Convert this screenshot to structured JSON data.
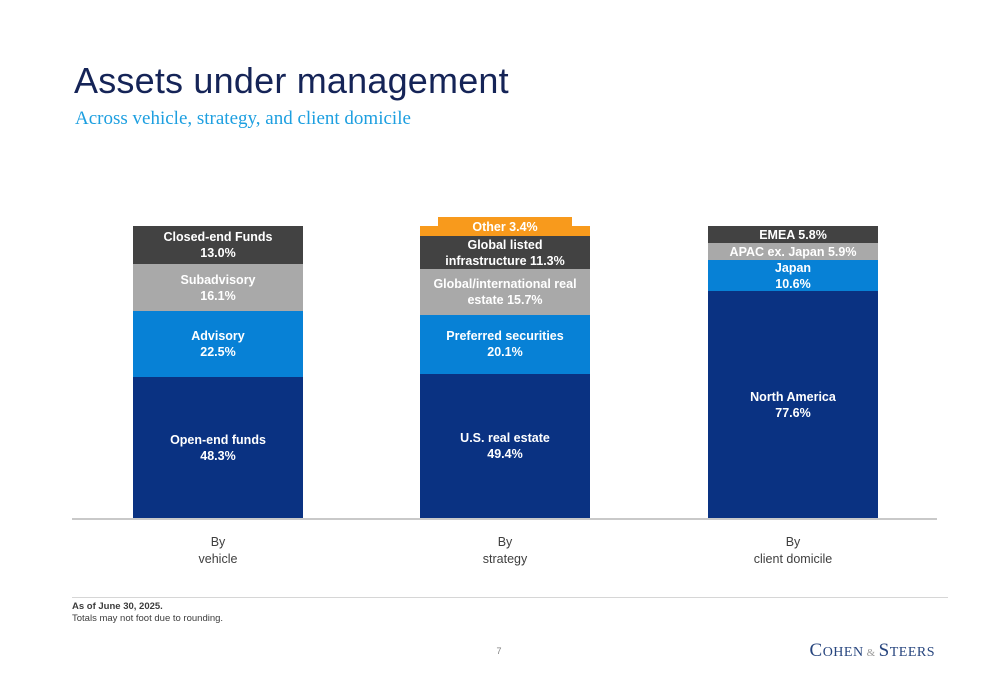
{
  "slide": {
    "title": "Assets under management",
    "subtitle": "Across vehicle, strategy, and client domicile",
    "footnote_line1": "As of June 30, 2025.",
    "footnote_line2": "Totals may not foot due to rounding.",
    "page_number": "7",
    "logo": {
      "c": "C",
      "ohen": "OHEN",
      "amp": "&",
      "s": "S",
      "teers": "TEERS"
    }
  },
  "colors": {
    "navy": "#0a3282",
    "blue": "#0781d6",
    "gray": "#a9a9a9",
    "dark_gray": "#424242",
    "orange": "#f89a1c",
    "title_navy": "#152457",
    "subtitle_blue": "#1d9fe0",
    "logo_navy": "#27457e",
    "axis_line_gray": "#c9c9c9"
  },
  "chart_data": {
    "type": "bar",
    "variant": "stacked-percentage-columns",
    "title": "Assets under management",
    "subtitle": "Across vehicle, strategy, and client domicile",
    "unit": "%",
    "ylim": [
      0,
      100
    ],
    "grid": false,
    "legend": "none (labels inside segments)",
    "stack_order": "top-to-bottom",
    "charts": [
      {
        "id": "vehicle",
        "category_label": "By vehicle",
        "axis_label_lines": [
          "By",
          "vehicle"
        ],
        "segments": [
          {
            "id": "closed-end-funds",
            "name": "Closed-end Funds",
            "value": 13.0,
            "color": "dark_gray",
            "label_lines": [
              "Closed-end Funds",
              "13.0%"
            ]
          },
          {
            "id": "subadvisory",
            "name": "Subadvisory",
            "value": 16.1,
            "color": "gray",
            "label_lines": [
              "Subadvisory",
              "16.1%"
            ]
          },
          {
            "id": "advisory",
            "name": "Advisory",
            "value": 22.5,
            "color": "blue",
            "label_lines": [
              "Advisory",
              "22.5%"
            ]
          },
          {
            "id": "open-end-funds",
            "name": "Open-end funds",
            "value": 48.3,
            "color": "navy",
            "label_lines": [
              "Open-end funds",
              "48.3%"
            ]
          }
        ]
      },
      {
        "id": "strategy",
        "category_label": "By strategy",
        "axis_label_lines": [
          "By",
          "strategy"
        ],
        "segments": [
          {
            "id": "other",
            "name": "Other",
            "value": 3.4,
            "color": "orange",
            "callout": true,
            "label_lines": [
              "Other 3.4%"
            ]
          },
          {
            "id": "global-listed-infrastructure",
            "name": "Global listed infrastructure",
            "value": 11.3,
            "color": "dark_gray",
            "label_lines": [
              "Global listed",
              "infrastructure 11.3%"
            ]
          },
          {
            "id": "global-international-real-estate",
            "name": "Global/international real estate",
            "value": 15.7,
            "color": "gray",
            "label_lines": [
              "Global/international real",
              "estate 15.7%"
            ]
          },
          {
            "id": "preferred-securities",
            "name": "Preferred securities",
            "value": 20.1,
            "color": "blue",
            "label_lines": [
              "Preferred securities",
              "20.1%"
            ]
          },
          {
            "id": "us-real-estate",
            "name": "U.S. real estate",
            "value": 49.4,
            "color": "navy",
            "label_lines": [
              "U.S. real estate",
              "49.4%"
            ]
          }
        ]
      },
      {
        "id": "client-domicile",
        "category_label": "By client domicile",
        "axis_label_lines": [
          "By",
          "client domicile"
        ],
        "segments": [
          {
            "id": "emea",
            "name": "EMEA",
            "value": 5.8,
            "color": "dark_gray",
            "label_lines": [
              "EMEA 5.8%"
            ]
          },
          {
            "id": "apac-ex-japan",
            "name": "APAC ex. Japan",
            "value": 5.9,
            "color": "gray",
            "label_lines": [
              "APAC ex. Japan 5.9%"
            ]
          },
          {
            "id": "japan",
            "name": "Japan",
            "value": 10.6,
            "color": "blue",
            "label_lines": [
              "Japan",
              "10.6%"
            ]
          },
          {
            "id": "north-america",
            "name": "North America",
            "value": 77.6,
            "color": "navy",
            "label_lines": [
              "North America",
              "77.6%"
            ]
          }
        ]
      }
    ]
  }
}
